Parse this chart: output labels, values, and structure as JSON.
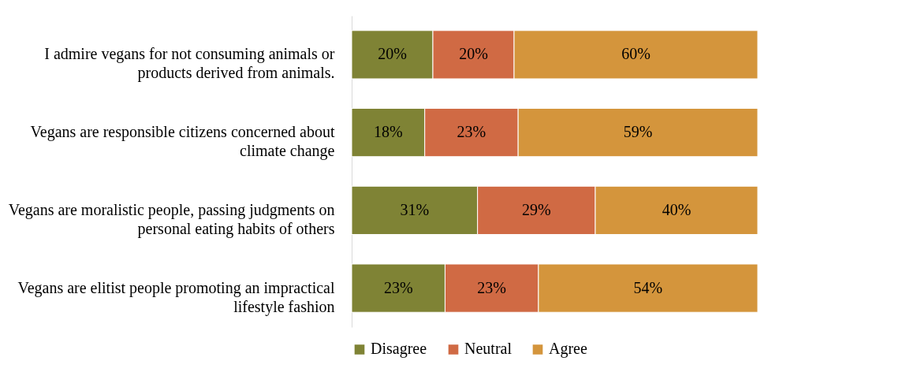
{
  "chart_data": {
    "type": "bar",
    "orientation": "horizontal",
    "stacked": true,
    "legend": "bottom",
    "xlim": [
      0,
      100
    ],
    "categories": [
      "I admire vegans for not consuming animals or products derived from animals.",
      "Vegans are responsible citizens concerned about climate change",
      "Vegans are moralistic people, passing judgments on personal eating habits of others",
      "Vegans are elitist people promoting an impractical lifestyle fashion"
    ],
    "series": [
      {
        "name": "Disagree",
        "color": "#7f8335",
        "values": [
          20,
          18,
          31,
          23
        ],
        "value_labels": [
          "20%",
          "18%",
          "31%",
          "23%"
        ]
      },
      {
        "name": "Neutral",
        "color": "#d06a44",
        "values": [
          20,
          23,
          29,
          23
        ],
        "value_labels": [
          "20%",
          "23%",
          "29%",
          "23%"
        ]
      },
      {
        "name": "Agree",
        "color": "#d4953c",
        "values": [
          60,
          59,
          40,
          54
        ],
        "value_labels": [
          "60%",
          "59%",
          "40%",
          "54%"
        ]
      }
    ]
  }
}
